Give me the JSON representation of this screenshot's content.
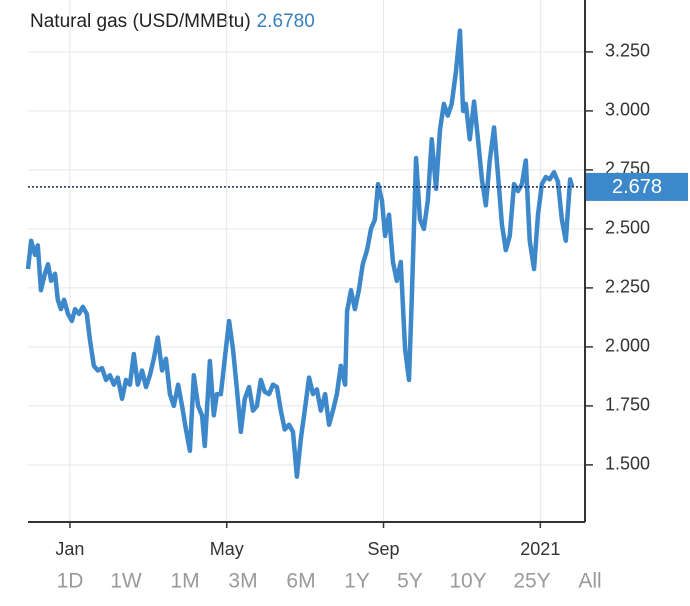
{
  "chart_data": {
    "type": "line",
    "title": "Natural gas (USD/MMBtu)",
    "last_price": {
      "value": 2.678,
      "label": "2.6780"
    },
    "x": [
      -1.07,
      -0.99,
      -0.89,
      -0.82,
      -0.74,
      -0.64,
      -0.56,
      -0.48,
      -0.38,
      -0.31,
      -0.23,
      -0.15,
      -0.05,
      0.05,
      0.13,
      0.23,
      0.33,
      0.43,
      0.51,
      0.61,
      0.71,
      0.82,
      0.92,
      1.02,
      1.12,
      1.22,
      1.33,
      1.43,
      1.53,
      1.63,
      1.73,
      1.84,
      1.94,
      2.04,
      2.14,
      2.24,
      2.35,
      2.45,
      2.55,
      2.65,
      2.76,
      2.86,
      2.96,
      3.06,
      3.16,
      3.27,
      3.37,
      3.44,
      3.57,
      3.67,
      3.75,
      3.85,
      3.95,
      4.06,
      4.16,
      4.26,
      4.36,
      4.46,
      4.57,
      4.67,
      4.77,
      4.87,
      4.97,
      5.08,
      5.18,
      5.28,
      5.38,
      5.48,
      5.59,
      5.69,
      5.79,
      5.89,
      5.99,
      6.1,
      6.2,
      6.3,
      6.4,
      6.51,
      6.61,
      6.71,
      6.81,
      6.91,
      7.02,
      7.07,
      7.17,
      7.27,
      7.37,
      7.47,
      7.58,
      7.68,
      7.78,
      7.86,
      7.96,
      8.04,
      8.14,
      8.24,
      8.34,
      8.44,
      8.55,
      8.65,
      8.72,
      8.83,
      8.93,
      9.03,
      9.13,
      9.23,
      9.34,
      9.44,
      9.54,
      9.64,
      9.74,
      9.85,
      9.95,
      10.03,
      10.1,
      10.2,
      10.31,
      10.41,
      10.51,
      10.61,
      10.71,
      10.82,
      10.92,
      11.02,
      11.12,
      11.22,
      11.33,
      11.43,
      11.53,
      11.63,
      11.73,
      11.84,
      11.94,
      12.04,
      12.14,
      12.24,
      12.35,
      12.45,
      12.55,
      12.65,
      12.76,
      12.81
    ],
    "series": [
      {
        "name": "Natural gas",
        "color": "#3d88ca",
        "values": [
          2.33,
          2.45,
          2.39,
          2.43,
          2.24,
          2.31,
          2.35,
          2.28,
          2.31,
          2.2,
          2.16,
          2.2,
          2.14,
          2.11,
          2.16,
          2.14,
          2.17,
          2.14,
          2.03,
          1.92,
          1.9,
          1.91,
          1.86,
          1.88,
          1.84,
          1.87,
          1.78,
          1.86,
          1.84,
          1.97,
          1.84,
          1.9,
          1.83,
          1.88,
          1.95,
          2.04,
          1.9,
          1.95,
          1.8,
          1.75,
          1.84,
          1.75,
          1.65,
          1.56,
          1.88,
          1.75,
          1.71,
          1.58,
          1.94,
          1.71,
          1.8,
          1.8,
          1.95,
          2.11,
          1.99,
          1.82,
          1.64,
          1.78,
          1.83,
          1.73,
          1.75,
          1.86,
          1.81,
          1.8,
          1.84,
          1.83,
          1.73,
          1.65,
          1.67,
          1.64,
          1.45,
          1.61,
          1.73,
          1.87,
          1.8,
          1.82,
          1.73,
          1.8,
          1.67,
          1.73,
          1.8,
          1.92,
          1.84,
          2.15,
          2.24,
          2.16,
          2.24,
          2.35,
          2.41,
          2.5,
          2.54,
          2.69,
          2.62,
          2.47,
          2.56,
          2.36,
          2.28,
          2.36,
          1.99,
          1.86,
          2.2,
          2.8,
          2.54,
          2.5,
          2.62,
          2.88,
          2.67,
          2.92,
          3.03,
          2.98,
          3.03,
          3.17,
          3.34,
          3.0,
          3.03,
          2.88,
          3.04,
          2.88,
          2.71,
          2.6,
          2.79,
          2.93,
          2.73,
          2.52,
          2.41,
          2.47,
          2.69,
          2.66,
          2.69,
          2.79,
          2.45,
          2.33,
          2.56,
          2.69,
          2.72,
          2.71,
          2.74,
          2.7,
          2.54,
          2.45,
          2.71,
          2.68
        ]
      }
    ],
    "xlim": [
      -1.07,
      13.14
    ],
    "xticks": [
      {
        "value": 0,
        "label": "Jan"
      },
      {
        "value": 4,
        "label": "May"
      },
      {
        "value": 8,
        "label": "Sep"
      },
      {
        "value": 12,
        "label": "2021"
      }
    ],
    "ylim": [
      1.258,
      3.47
    ],
    "yticks": [
      {
        "value": 1.5,
        "label": "1.500"
      },
      {
        "value": 1.75,
        "label": "1.750"
      },
      {
        "value": 2,
        "label": "2.000"
      },
      {
        "value": 2.25,
        "label": "2.250"
      },
      {
        "value": 2.5,
        "label": "2.500"
      },
      {
        "value": 2.75,
        "label": "2.750"
      },
      {
        "value": 3,
        "label": "3.000"
      },
      {
        "value": 3.25,
        "label": "3.250"
      }
    ],
    "grid": true
  },
  "range_buttons": [
    "1D",
    "1W",
    "1M",
    "3M",
    "6M",
    "1Y",
    "5Y",
    "10Y",
    "25Y",
    "All"
  ]
}
